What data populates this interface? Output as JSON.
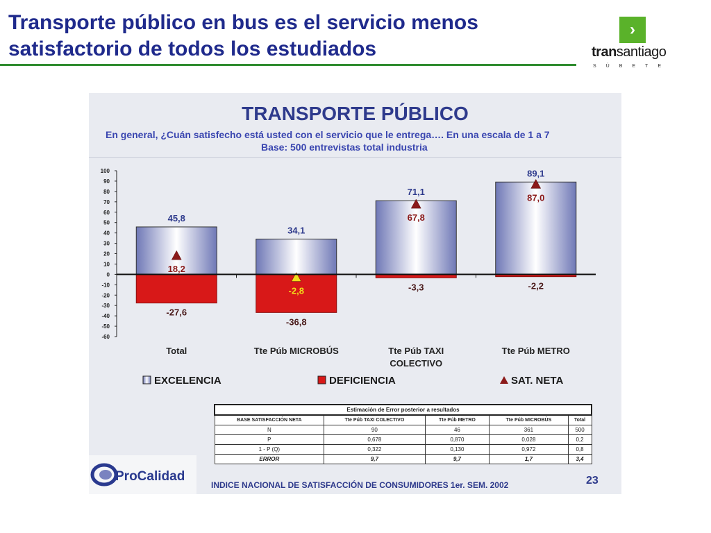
{
  "slide": {
    "title_line1": "Transporte público en bus es el servicio menos",
    "title_line2": "satisfactorio de todos los estudiados"
  },
  "logo": {
    "mark": "›",
    "word_bold": "tran",
    "word_rest": "santiago",
    "tagline": "SÚBETE"
  },
  "panel": {
    "title": "TRANSPORTE PÚBLICO",
    "question": "En general, ¿Cuán satisfecho está usted con el servicio que le entrega…. En una escala de 1 a 7",
    "base": "Base: 500 entrevistas total industria",
    "footer": "INDICE NACIONAL DE SATISFACCIÓN DE CONSUMIDORES 1er. SEM. 2002",
    "page": "23"
  },
  "procalidad": {
    "name": "ProCalidad"
  },
  "chart_data": {
    "type": "bar",
    "categories": [
      "Total",
      "Tte Púb MICROBÚS",
      "Tte Púb TAXI COLECTIVO",
      "Tte Púb METRO"
    ],
    "category_lines": [
      [
        "Total"
      ],
      [
        "Tte Púb MICROBÚS"
      ],
      [
        "Tte Púb TAXI",
        "COLECTIVO"
      ],
      [
        "Tte Púb METRO"
      ]
    ],
    "series": [
      {
        "name": "EXCELENCIA",
        "values": [
          45.8,
          34.1,
          71.1,
          89.1
        ],
        "labels": [
          "45,8",
          "34,1",
          "71,1",
          "89,1"
        ],
        "color": "#8890c4"
      },
      {
        "name": "DEFICIENCIA",
        "values": [
          -27.6,
          -36.8,
          -3.3,
          -2.2
        ],
        "labels": [
          "-27,6",
          "-36,8",
          "-3,3",
          "-2,2"
        ],
        "color": "#d81818"
      },
      {
        "name": "SAT. NETA",
        "values": [
          18.2,
          -2.8,
          67.8,
          87.0
        ],
        "labels": [
          "18,2",
          "-2,8",
          "67,8",
          "87,0"
        ],
        "color": "#8b1a1a"
      }
    ],
    "ylim": [
      -60,
      100
    ],
    "yticks": [
      "100",
      "90",
      "80",
      "70",
      "60",
      "50",
      "40",
      "30",
      "20",
      "10",
      "0",
      "-10",
      "-20",
      "-30",
      "-40",
      "-50",
      "-60"
    ],
    "legend_position": "bottom"
  },
  "error_table": {
    "caption": "Estimación de Error posterior a resultados",
    "header": [
      "BASE SATISFACCIÓN NETA",
      "Tte Púb TAXI COLECTIVO",
      "Tte Púb METRO",
      "Tte Púb MICROBÚS",
      "Total"
    ],
    "rows": [
      [
        "N",
        "90",
        "46",
        "361",
        "500"
      ],
      [
        "P",
        "0,678",
        "0,870",
        "0,028",
        "0,2"
      ],
      [
        "1 - P (Q)",
        "0,322",
        "0,130",
        "0,972",
        "0,8"
      ],
      [
        "ERROR",
        "9,7",
        "9,7",
        "1,7",
        "3,4"
      ]
    ]
  },
  "colors": {
    "title_blue": "#1f2a8c",
    "rule_green": "#2e8b2e",
    "logo_green": "#5ab22a",
    "panel_bg": "#e9ebf1",
    "bar_red": "#d81818",
    "triangle_dark": "#8b1a1a",
    "triangle_yellow": "#f2dd1a"
  }
}
